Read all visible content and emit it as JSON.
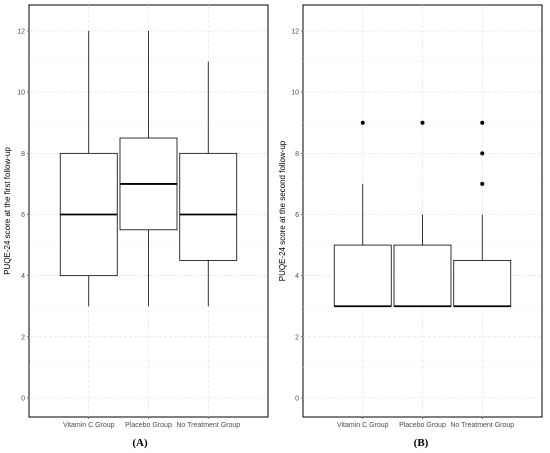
{
  "chart_data": [
    {
      "type": "boxplot",
      "panel_label": "(A)",
      "ylabel": "PUQE-24 score at the first follow-up",
      "categories": [
        "Vitamin C Group",
        "Placebo Group",
        "No Treatment Group"
      ],
      "ylim": [
        0,
        12
      ],
      "yticks": [
        0,
        2,
        4,
        6,
        8,
        10,
        12
      ],
      "grid": true,
      "boxes": [
        {
          "min": 3,
          "q1": 4,
          "median": 6,
          "q3": 8,
          "max": 12,
          "outliers": []
        },
        {
          "min": 3,
          "q1": 5.5,
          "median": 7,
          "q3": 8.5,
          "max": 12,
          "outliers": []
        },
        {
          "min": 3,
          "q1": 4.5,
          "median": 6,
          "q3": 8,
          "max": 11,
          "outliers": []
        }
      ]
    },
    {
      "type": "boxplot",
      "panel_label": "(B)",
      "ylabel": "PUQE-24 score at the second follow-up",
      "categories": [
        "Vitamin C Group",
        "Placebo Group",
        "No Treatment Group"
      ],
      "ylim": [
        0,
        12
      ],
      "yticks": [
        0,
        2,
        4,
        6,
        8,
        10,
        12
      ],
      "grid": true,
      "boxes": [
        {
          "min": 3,
          "q1": 3,
          "median": 3,
          "q3": 5,
          "max": 7,
          "outliers": [
            9
          ]
        },
        {
          "min": 3,
          "q1": 3,
          "median": 3,
          "q3": 5,
          "max": 6,
          "outliers": [
            9
          ]
        },
        {
          "min": 3,
          "q1": 3,
          "median": 3,
          "q3": 4.5,
          "max": 6,
          "outliers": [
            7,
            8,
            9
          ]
        }
      ]
    }
  ]
}
